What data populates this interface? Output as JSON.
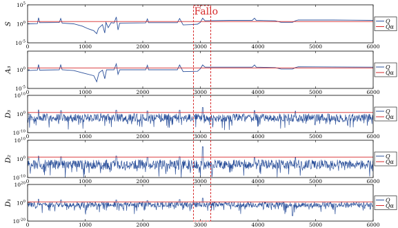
{
  "chart_data": {
    "type": "line",
    "annotation": {
      "label": "Fallo",
      "x_range": [
        2880,
        3180
      ],
      "color": "#d62728"
    },
    "colors": {
      "signal": "#2a4f9a",
      "threshold": "#d62728"
    },
    "panels": [
      {
        "ylabel": "S",
        "exp": {
          "min": -5,
          "max": 5
        },
        "yticks": [
          {
            "e": "5"
          },
          {
            "e": "0"
          },
          {
            "e": "-5"
          }
        ],
        "xlim": [
          0,
          6000
        ],
        "xticks": [
          "0",
          "1000",
          "2000",
          "3000",
          "4000",
          "5000",
          "6000"
        ],
        "grid": false,
        "legend": {
          "placement": "right",
          "entries": [
            "Q",
            "Qα"
          ]
        },
        "threshold_exp": 0.6,
        "signal": [
          {
            "x": 0,
            "y": 0
          },
          {
            "x": 170,
            "y": 0.05
          },
          {
            "x": 190,
            "y": 1.6
          },
          {
            "x": 210,
            "y": 0.3
          },
          {
            "x": 550,
            "y": 0.35
          },
          {
            "x": 575,
            "y": 1.4
          },
          {
            "x": 600,
            "y": 0.2
          },
          {
            "x": 800,
            "y": 0
          },
          {
            "x": 950,
            "y": -0.6
          },
          {
            "x": 1050,
            "y": -1.3
          },
          {
            "x": 1150,
            "y": -1.8
          },
          {
            "x": 1200,
            "y": -2.6
          },
          {
            "x": 1230,
            "y": -1.2
          },
          {
            "x": 1300,
            "y": -0.2
          },
          {
            "x": 1340,
            "y": -2.4
          },
          {
            "x": 1360,
            "y": 0.4
          },
          {
            "x": 1400,
            "y": -1.0
          },
          {
            "x": 1450,
            "y": 0.3
          },
          {
            "x": 1500,
            "y": 0.2
          },
          {
            "x": 1540,
            "y": 1.8
          },
          {
            "x": 1570,
            "y": -1.6
          },
          {
            "x": 1600,
            "y": 0.2
          },
          {
            "x": 2050,
            "y": 0.25
          },
          {
            "x": 2080,
            "y": 1.3
          },
          {
            "x": 2100,
            "y": 0.3
          },
          {
            "x": 2600,
            "y": 0.3
          },
          {
            "x": 2640,
            "y": 1.4
          },
          {
            "x": 2700,
            "y": -0.3
          },
          {
            "x": 2850,
            "y": -0.2
          },
          {
            "x": 2950,
            "y": -0.1
          },
          {
            "x": 3000,
            "y": 0.4
          },
          {
            "x": 3040,
            "y": 1.5
          },
          {
            "x": 3080,
            "y": 0.8
          },
          {
            "x": 3500,
            "y": 0.9
          },
          {
            "x": 3900,
            "y": 0.9
          },
          {
            "x": 3940,
            "y": 1.5
          },
          {
            "x": 3970,
            "y": 0.9
          },
          {
            "x": 4300,
            "y": 0.8
          },
          {
            "x": 4400,
            "y": 0.4
          },
          {
            "x": 4600,
            "y": 0.4
          },
          {
            "x": 4650,
            "y": 0.8
          },
          {
            "x": 4700,
            "y": 1.0
          },
          {
            "x": 5300,
            "y": 1.0
          },
          {
            "x": 6000,
            "y": 0.9
          }
        ]
      },
      {
        "ylabel": "A₃",
        "exp": {
          "min": -5,
          "max": 5
        },
        "yticks": [
          {
            "e": "0"
          },
          {
            "e": "-5"
          }
        ],
        "xlim": [
          0,
          6000
        ],
        "xticks": [
          "0",
          "1000",
          "2000",
          "3000",
          "4000",
          "5000",
          "6000"
        ],
        "grid": false,
        "legend": {
          "placement": "right",
          "entries": [
            "Q",
            "Qα"
          ]
        },
        "threshold_exp": 0.5,
        "signal": [
          {
            "x": 0,
            "y": -0.2
          },
          {
            "x": 170,
            "y": -0.1
          },
          {
            "x": 190,
            "y": 1.4
          },
          {
            "x": 210,
            "y": -0.1
          },
          {
            "x": 550,
            "y": 0.0
          },
          {
            "x": 575,
            "y": 1.3
          },
          {
            "x": 600,
            "y": 0.0
          },
          {
            "x": 800,
            "y": -0.2
          },
          {
            "x": 1000,
            "y": -1.0
          },
          {
            "x": 1150,
            "y": -1.6
          },
          {
            "x": 1200,
            "y": -3.2
          },
          {
            "x": 1240,
            "y": -0.8
          },
          {
            "x": 1300,
            "y": -0.1
          },
          {
            "x": 1340,
            "y": -2.4
          },
          {
            "x": 1370,
            "y": 0.0
          },
          {
            "x": 1500,
            "y": 0.0
          },
          {
            "x": 1540,
            "y": 1.6
          },
          {
            "x": 1570,
            "y": -1.2
          },
          {
            "x": 1600,
            "y": 0.0
          },
          {
            "x": 2050,
            "y": 0.0
          },
          {
            "x": 2080,
            "y": 1.2
          },
          {
            "x": 2100,
            "y": 0.0
          },
          {
            "x": 2600,
            "y": 0.0
          },
          {
            "x": 2640,
            "y": 1.3
          },
          {
            "x": 2700,
            "y": -0.5
          },
          {
            "x": 2950,
            "y": -0.4
          },
          {
            "x": 3000,
            "y": 0.3
          },
          {
            "x": 3040,
            "y": 1.3
          },
          {
            "x": 3080,
            "y": 0.7
          },
          {
            "x": 3900,
            "y": 0.7
          },
          {
            "x": 3940,
            "y": 1.3
          },
          {
            "x": 3970,
            "y": 0.7
          },
          {
            "x": 4300,
            "y": 0.6
          },
          {
            "x": 4400,
            "y": 0.2
          },
          {
            "x": 4600,
            "y": 0.2
          },
          {
            "x": 4650,
            "y": 0.6
          },
          {
            "x": 4700,
            "y": 0.8
          },
          {
            "x": 6000,
            "y": 0.7
          }
        ]
      },
      {
        "ylabel": "D₃",
        "exp": {
          "min": -10,
          "max": 10
        },
        "yticks": [
          {
            "e": "10"
          },
          {
            "e": "0"
          },
          {
            "e": "-10"
          }
        ],
        "xlim": [
          0,
          6000
        ],
        "xticks": [
          "0",
          "1000",
          "2000",
          "3000",
          "4000",
          "5000",
          "6000"
        ],
        "grid": false,
        "legend": {
          "placement": "right",
          "entries": [
            "Q",
            "Qα"
          ]
        },
        "threshold_exp": 0.8,
        "noise": {
          "center": -2.0,
          "amp": 2.2,
          "deep": 5.0,
          "seed": 31,
          "spikes": [
            {
              "x": 190,
              "y": 2.2
            },
            {
              "x": 580,
              "y": 1.8
            },
            {
              "x": 1540,
              "y": 2.0
            },
            {
              "x": 2080,
              "y": 1.6
            },
            {
              "x": 2640,
              "y": 2.0
            },
            {
              "x": 3040,
              "y": 3.5
            },
            {
              "x": 3940,
              "y": 1.8
            },
            {
              "x": 4650,
              "y": 1.5
            }
          ]
        }
      },
      {
        "ylabel": "D₂",
        "exp": {
          "min": -10,
          "max": 10
        },
        "yticks": [
          {
            "e": "10"
          },
          {
            "e": "0"
          },
          {
            "e": "-10"
          }
        ],
        "xlim": [
          0,
          6000
        ],
        "xticks": [
          "0",
          "1000",
          "2000",
          "3000",
          "4000",
          "5000",
          "6000"
        ],
        "grid": false,
        "legend": {
          "placement": "right",
          "entries": [
            "Q",
            "Qα"
          ]
        },
        "threshold_exp": 1.0,
        "noise": {
          "center": -3.0,
          "amp": 2.6,
          "deep": 5.5,
          "seed": 57,
          "spikes": [
            {
              "x": 190,
              "y": 1.5
            },
            {
              "x": 580,
              "y": 1.2
            },
            {
              "x": 1540,
              "y": 1.5
            },
            {
              "x": 2080,
              "y": 1.0
            },
            {
              "x": 2640,
              "y": 1.2
            },
            {
              "x": 3040,
              "y": 6.5
            },
            {
              "x": 3940,
              "y": 1.0
            },
            {
              "x": 4650,
              "y": 1.0
            }
          ]
        }
      },
      {
        "ylabel": "D₁",
        "exp": {
          "min": -20,
          "max": 20
        },
        "yticks": [
          {
            "e": "20"
          },
          {
            "e": "0"
          },
          {
            "e": "-20"
          }
        ],
        "xlim": [
          0,
          6000
        ],
        "xticks": [
          "0",
          "1000",
          "2000",
          "3000",
          "4000",
          "5000",
          "6000"
        ],
        "grid": false,
        "legend": {
          "placement": "right",
          "entries": [
            "Q",
            "Qα"
          ]
        },
        "threshold_exp": 1.0,
        "noise": {
          "center": -2.0,
          "amp": 3.0,
          "deep": 8.0,
          "seed": 83,
          "spikes": [
            {
              "x": 190,
              "y": 4.0
            },
            {
              "x": 580,
              "y": 3.0
            },
            {
              "x": 1540,
              "y": 3.0
            },
            {
              "x": 2080,
              "y": 2.5
            },
            {
              "x": 2640,
              "y": 3.5
            },
            {
              "x": 3040,
              "y": 5.0
            },
            {
              "x": 4600,
              "y": -14.0
            },
            {
              "x": 5950,
              "y": -7.0
            }
          ]
        }
      }
    ]
  }
}
